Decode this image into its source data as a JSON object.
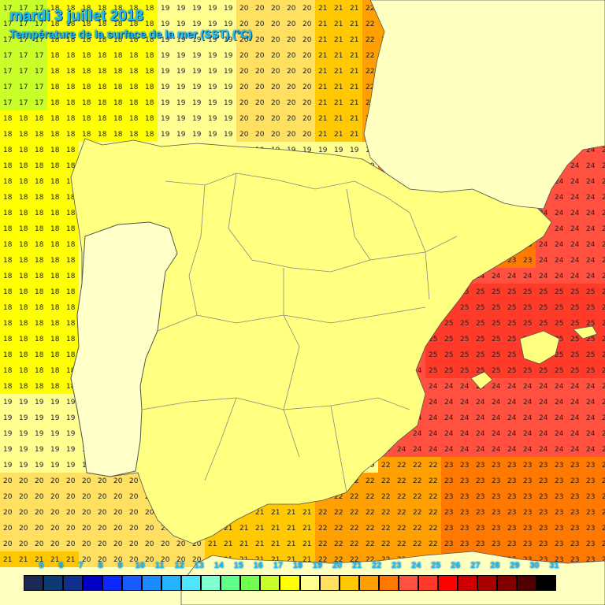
{
  "header": {
    "title": "mardi 3 juillet 2018",
    "subtitle": "Température de la surface de la mer (SST) (°C)"
  },
  "map": {
    "land_color": "#ffff80",
    "portugal_color": "#ffffc8",
    "border_color": "#888888"
  },
  "legend": {
    "values": [
      5,
      6,
      7,
      8,
      9,
      10,
      11,
      12,
      13,
      14,
      15,
      16,
      17,
      18,
      19,
      20,
      21,
      22,
      23,
      24,
      25,
      26,
      27,
      28,
      29,
      30,
      31
    ],
    "colors": [
      "#1a2a55",
      "#0d3a70",
      "#10308f",
      "#0000c8",
      "#0a28ff",
      "#1a5bff",
      "#1b8cff",
      "#22b4ff",
      "#50e4ff",
      "#80ffd0",
      "#60ff8a",
      "#70ff50",
      "#c8ff28",
      "#ffff00",
      "#ffff90",
      "#ffe060",
      "#ffc800",
      "#ffa000",
      "#ff7800",
      "#ff5040",
      "#ff3a28",
      "#ff0000",
      "#d00000",
      "#a80000",
      "#800000",
      "#500000",
      "#000000"
    ]
  }
}
